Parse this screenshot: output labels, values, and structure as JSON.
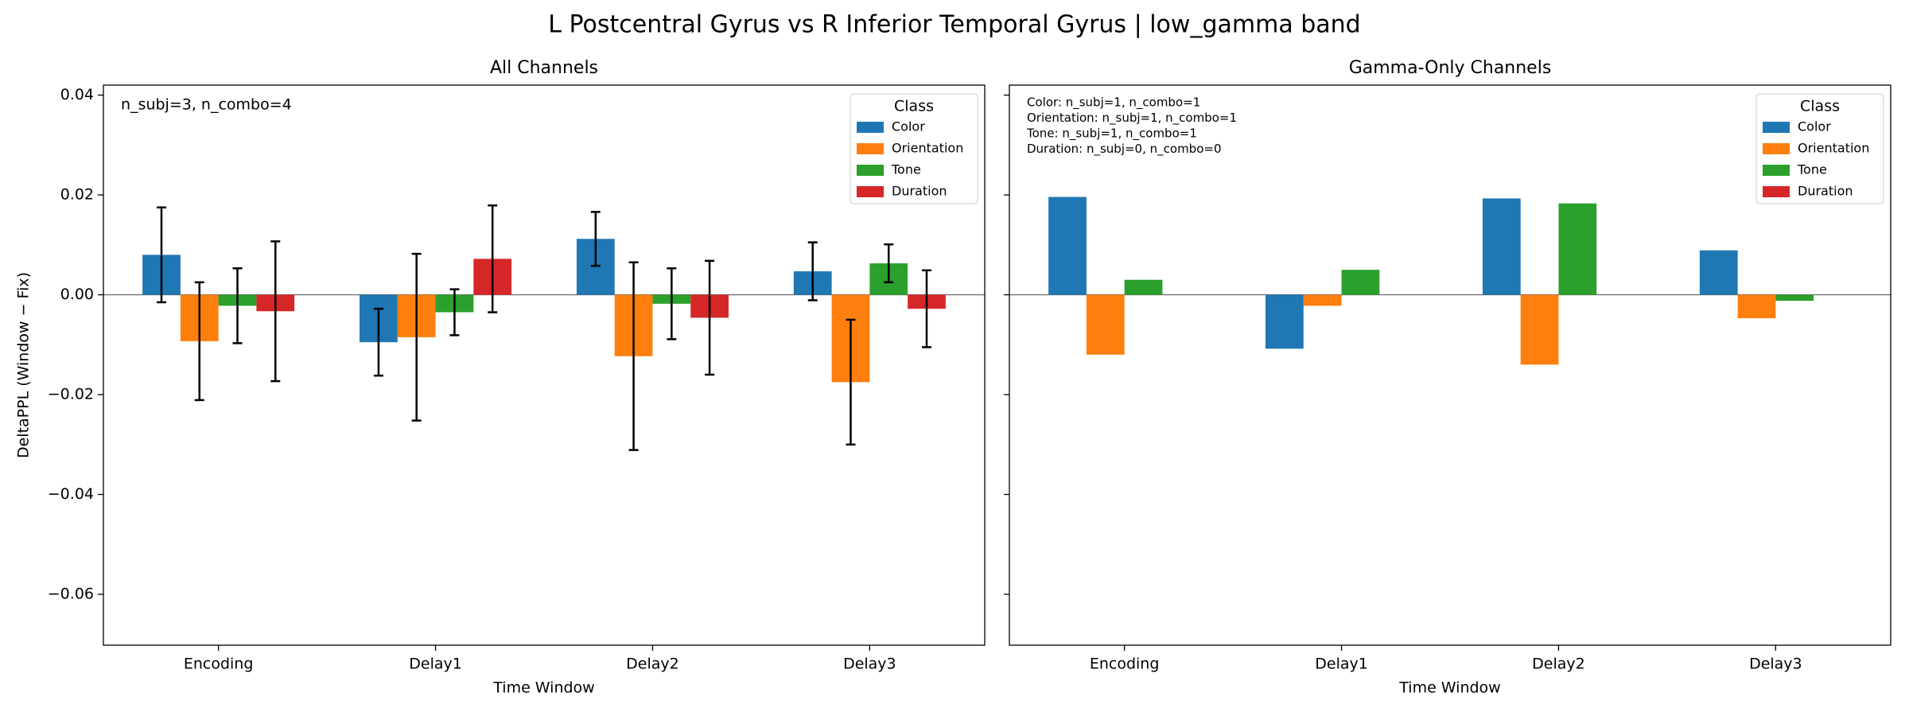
{
  "title": "L Postcentral Gyrus vs R Inferior Temporal Gyrus  |  low_gamma band",
  "chart_data": [
    {
      "type": "bar",
      "title": "All Channels",
      "x_label": "Time Window",
      "y_label": "DeltaPPL (Window − Fix)",
      "categories": [
        "Encoding",
        "Delay1",
        "Delay2",
        "Delay3"
      ],
      "series": [
        {
          "name": "Color",
          "color": "#1f77b4",
          "values": [
            0.008,
            -0.0095,
            0.0112,
            0.0047
          ],
          "errors": [
            0.0095,
            0.0067,
            0.0054,
            0.0058
          ]
        },
        {
          "name": "Orientation",
          "color": "#ff7f0e",
          "values": [
            -0.0093,
            -0.0085,
            -0.0123,
            -0.0175
          ],
          "errors": [
            0.0118,
            0.0167,
            0.0188,
            0.0125
          ]
        },
        {
          "name": "Tone",
          "color": "#2ca02c",
          "values": [
            -0.0022,
            -0.0035,
            -0.0018,
            0.0063
          ],
          "errors": [
            0.0075,
            0.0046,
            0.0071,
            0.0038
          ]
        },
        {
          "name": "Duration",
          "color": "#d62728",
          "values": [
            -0.0033,
            0.0072,
            -0.0046,
            -0.0028
          ],
          "errors": [
            0.014,
            0.0107,
            0.0114,
            0.0077
          ]
        }
      ],
      "ylim": [
        -0.0702,
        0.042
      ],
      "yticks": [
        {
          "value": -0.06,
          "label": "−0.06"
        },
        {
          "value": -0.04,
          "label": "−0.04"
        },
        {
          "value": -0.02,
          "label": "−0.02"
        },
        {
          "value": 0,
          "label": "0.00"
        },
        0.02,
        0.04
      ],
      "legend": {
        "title": "Class",
        "loc": "upper right"
      },
      "annotation": [
        "n_subj=3, n_combo=4"
      ]
    },
    {
      "type": "bar",
      "title": "Gamma-Only Channels",
      "x_label": "Time Window",
      "categories": [
        "Encoding",
        "Delay1",
        "Delay2",
        "Delay3"
      ],
      "series": [
        {
          "name": "Color",
          "color": "#1f77b4",
          "values": [
            0.0196,
            -0.0108,
            0.0193,
            0.0089
          ]
        },
        {
          "name": "Orientation",
          "color": "#ff7f0e",
          "values": [
            -0.012,
            -0.0022,
            -0.014,
            -0.0047
          ]
        },
        {
          "name": "Tone",
          "color": "#2ca02c",
          "values": [
            0.003,
            0.005,
            0.0183,
            -0.0012
          ]
        },
        {
          "name": "Duration",
          "color": "#d62728",
          "values": [
            null,
            null,
            null,
            null
          ]
        }
      ],
      "ylim": [
        -0.0702,
        0.042
      ],
      "yticks": [
        -0.06,
        -0.04,
        -0.02,
        0,
        0.02,
        0.04
      ],
      "legend": {
        "title": "Class",
        "loc": "upper right"
      },
      "annotation": [
        "Color: n_subj=1, n_combo=1",
        "Orientation: n_subj=1, n_combo=1",
        "Tone: n_subj=1, n_combo=1",
        "Duration: n_subj=0, n_combo=0"
      ]
    }
  ]
}
